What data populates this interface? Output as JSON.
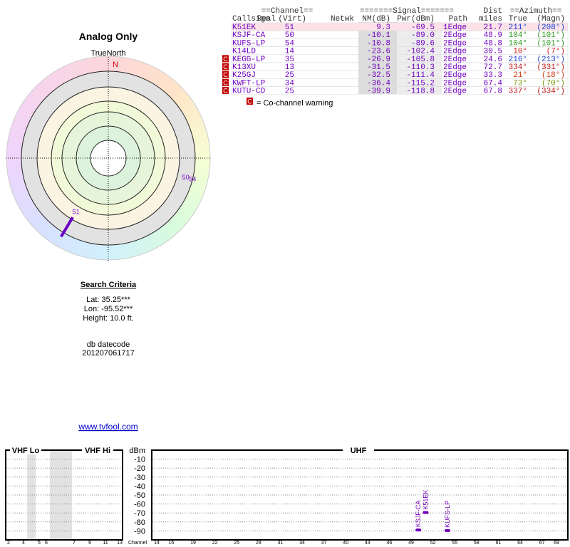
{
  "title": "Analog Only",
  "polar": {
    "north_label": "TrueNorth",
    "n_label": "N",
    "stations": [
      {
        "label": "51",
        "azimuth": 211,
        "nm": 9.3
      },
      {
        "label": "50",
        "azimuth": 104,
        "nm": -10.1
      },
      {
        "label": "54",
        "azimuth": 104,
        "nm": -10.8
      }
    ]
  },
  "search_criteria": {
    "heading": "Search Criteria",
    "lat": "Lat: 35.25***",
    "lon": "Lon: -95.52***",
    "height": "Height: 10.0 ft.",
    "datecode_label": "db datecode",
    "datecode": "201207061717"
  },
  "link": "www.tvfool.com",
  "table": {
    "group_headers": {
      "channel": "==Channel==",
      "signal": "=======Signal=======",
      "dist": "Dist",
      "azimuth": "==Azimuth=="
    },
    "headers": {
      "callsign": "Callsign",
      "real": "Real",
      "virt": "(Virt)",
      "netwk": "Netwk",
      "nm": "NM(dB)",
      "pwr": "Pwr(dBm)",
      "path": "Path",
      "dist": "miles",
      "true": "True",
      "magn": "(Magn)"
    },
    "rows": [
      {
        "callsign": "K51EK",
        "real": "51",
        "nm": "9.3",
        "pwr": "-69.5",
        "path": "1Edge",
        "dist": "21.7",
        "true": "211°",
        "magn": "(208°)",
        "az_color": "#1a3fd0",
        "cochannel": false
      },
      {
        "callsign": "KSJF-CA",
        "real": "50",
        "nm": "-10.1",
        "pwr": "-89.0",
        "path": "2Edge",
        "dist": "48.9",
        "true": "104°",
        "magn": "(101°)",
        "az_color": "#2a9a1a",
        "cochannel": false
      },
      {
        "callsign": "KUFS-LP",
        "real": "54",
        "nm": "-10.8",
        "pwr": "-89.6",
        "path": "2Edge",
        "dist": "48.8",
        "true": "104°",
        "magn": "(101°)",
        "az_color": "#2a9a1a",
        "cochannel": false
      },
      {
        "callsign": "K14LD",
        "real": "14",
        "nm": "-23.6",
        "pwr": "-102.4",
        "path": "2Edge",
        "dist": "30.5",
        "true": "10°",
        "magn": "(7°)",
        "az_color": "#d02020",
        "cochannel": false
      },
      {
        "callsign": "KEGG-LP",
        "real": "35",
        "nm": "-26.9",
        "pwr": "-105.8",
        "path": "2Edge",
        "dist": "24.6",
        "true": "216°",
        "magn": "(213°)",
        "az_color": "#1a3fd0",
        "cochannel": true
      },
      {
        "callsign": "K13XU",
        "real": "13",
        "nm": "-31.5",
        "pwr": "-110.3",
        "path": "2Edge",
        "dist": "72.7",
        "true": "334°",
        "magn": "(331°)",
        "az_color": "#c01818",
        "cochannel": true
      },
      {
        "callsign": "K25GJ",
        "real": "25",
        "nm": "-32.5",
        "pwr": "-111.4",
        "path": "2Edge",
        "dist": "33.3",
        "true": "21°",
        "magn": "(18°)",
        "az_color": "#d03810",
        "cochannel": true
      },
      {
        "callsign": "KWFT-LP",
        "real": "34",
        "nm": "-36.4",
        "pwr": "-115.2",
        "path": "2Edge",
        "dist": "67.4",
        "true": "73°",
        "magn": "(70°)",
        "az_color": "#7a9a10",
        "cochannel": true
      },
      {
        "callsign": "KUTU-CD",
        "real": "25",
        "nm": "-39.9",
        "pwr": "-118.8",
        "path": "2Edge",
        "dist": "67.8",
        "true": "337°",
        "magn": "(334°)",
        "az_color": "#c01818",
        "cochannel": true
      }
    ]
  },
  "legend": {
    "icon": "C",
    "text": "= Co-channel warning"
  },
  "spectrum": {
    "vhf_lo": "VHF Lo",
    "vhf_hi": "VHF Hi",
    "uhf": "UHF",
    "y_label": "dBm",
    "x_label": "Channel",
    "ylim": [
      -100,
      0
    ],
    "yticks": [
      -10,
      -20,
      -30,
      -40,
      -50,
      -60,
      -70,
      -80,
      -90
    ],
    "vhf_ticks": [
      2,
      4,
      5,
      6,
      7,
      9,
      11,
      13
    ],
    "uhf_ticks": [
      14,
      16,
      19,
      22,
      25,
      28,
      31,
      34,
      37,
      40,
      43,
      46,
      49,
      52,
      55,
      58,
      61,
      64,
      67,
      69
    ],
    "color": "#7000b8",
    "signals": [
      {
        "channel": 50,
        "pwr": -89.0
      },
      {
        "channel": 51,
        "pwr": -69.5
      },
      {
        "channel": 54,
        "pwr": -89.6
      }
    ]
  }
}
